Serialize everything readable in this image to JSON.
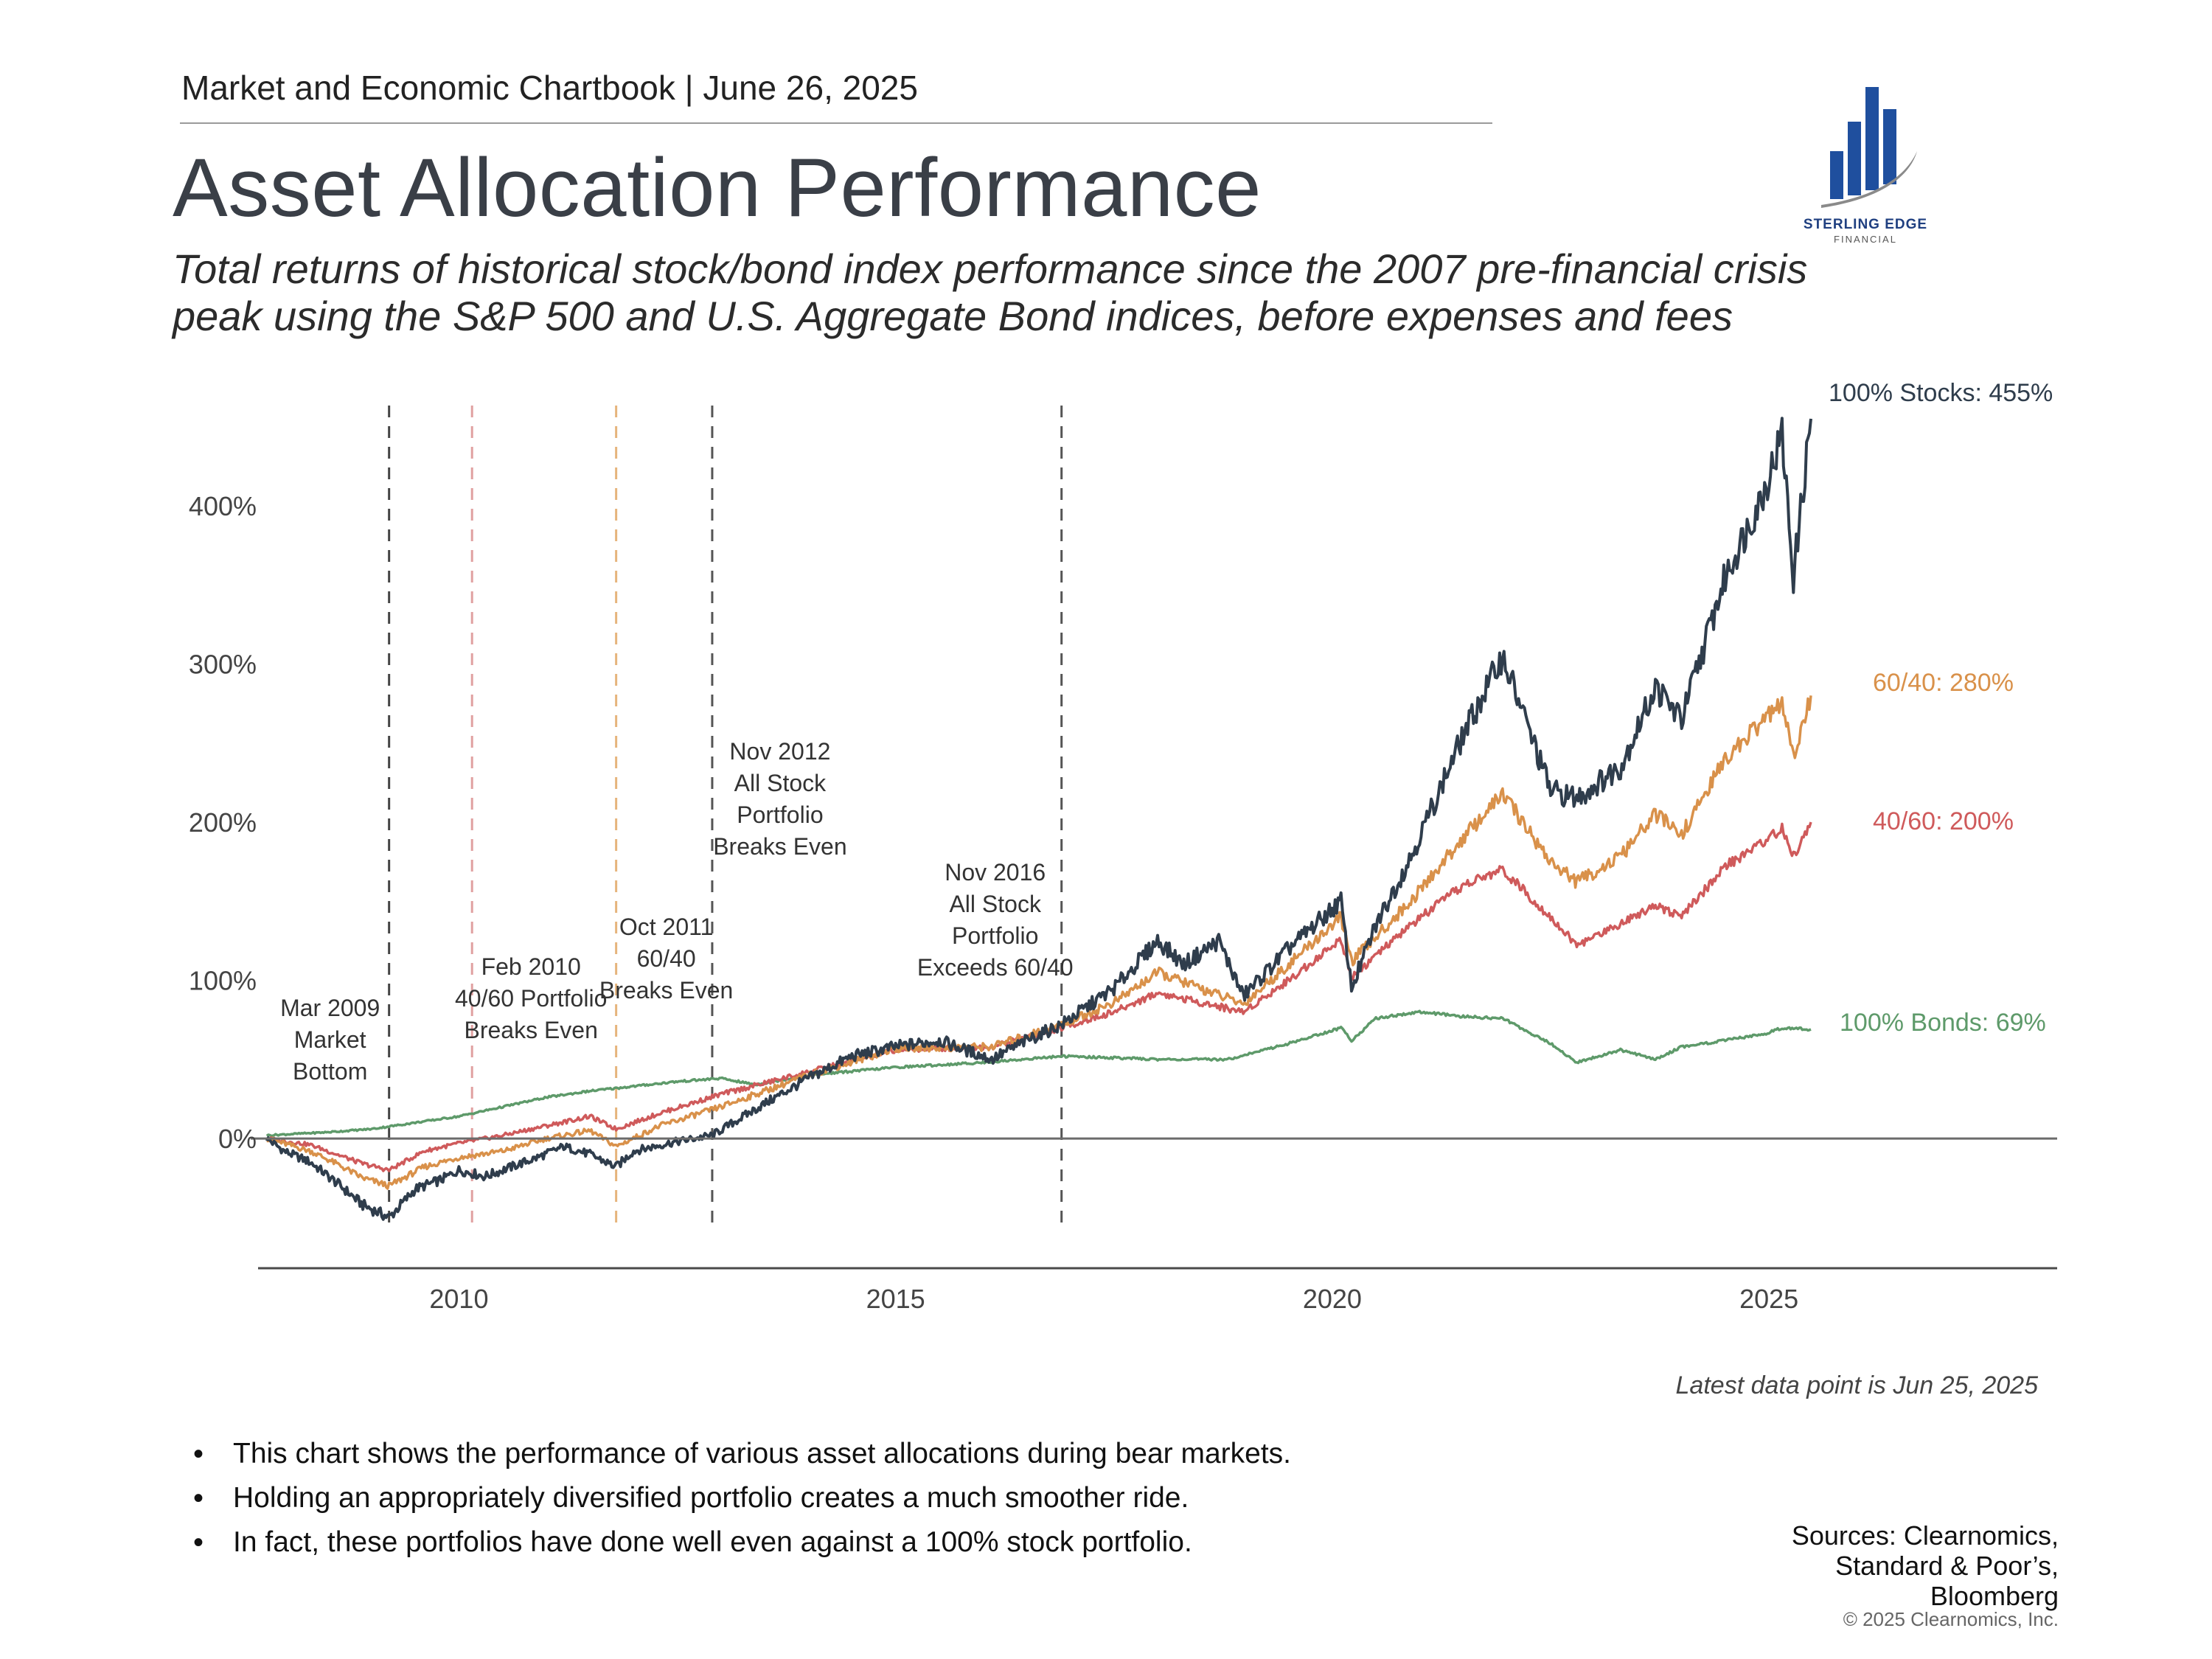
{
  "header": {
    "text": "Market and Economic Chartbook | June 26, 2025",
    "title": "Asset Allocation Performance",
    "subtitle_line1": "Total returns of historical stock/bond index performance since the 2007 pre-financial crisis",
    "subtitle_line2": "peak using the S&P 500 and U.S. Aggregate Bond indices, before expenses and fees"
  },
  "logo": {
    "name": "STERLING EDGE",
    "sub": "FINANCIAL"
  },
  "colors": {
    "stocks": "#2f3d4c",
    "sixty_forty": "#d9914a",
    "forty_sixty": "#cf5a5b",
    "bonds": "#5e9a6a",
    "axis": "#555555"
  },
  "chart_data": {
    "type": "line",
    "title": "Asset Allocation Performance",
    "xlabel": "",
    "ylabel": "",
    "xlim": [
      2007.7,
      2028.3
    ],
    "ylim": [
      -82,
      468
    ],
    "x_ticks": [
      2010,
      2015,
      2020,
      2025
    ],
    "x_tick_labels": [
      "2010",
      "2015",
      "2020",
      "2025"
    ],
    "y_ticks": [
      0,
      100,
      200,
      300,
      400
    ],
    "y_tick_labels": [
      "0%",
      "100%",
      "200%",
      "300%",
      "400%"
    ],
    "series": [
      {
        "name": "100% Stocks",
        "color": "#2f3d4c",
        "end_label": "100% Stocks: 455%",
        "x": [
          2007.8,
          2008.0,
          2008.3,
          2008.6,
          2008.9,
          2009.2,
          2009.5,
          2009.8,
          2010.0,
          2010.3,
          2010.6,
          2010.9,
          2011.2,
          2011.5,
          2011.8,
          2012.0,
          2012.4,
          2012.9,
          2013.5,
          2014.0,
          2014.5,
          2015.0,
          2015.5,
          2016.1,
          2016.5,
          2016.9,
          2017.5,
          2018.0,
          2018.3,
          2018.7,
          2018.98,
          2019.5,
          2020.1,
          2020.22,
          2020.5,
          2020.9,
          2021.5,
          2021.95,
          2022.5,
          2022.8,
          2023.3,
          2023.7,
          2024.0,
          2024.5,
          2024.95,
          2025.15,
          2025.28,
          2025.48
        ],
        "y": [
          0,
          -8,
          -15,
          -28,
          -42,
          -50,
          -32,
          -26,
          -20,
          -24,
          -18,
          -12,
          -5,
          -10,
          -18,
          -8,
          -3,
          2,
          22,
          38,
          52,
          58,
          62,
          50,
          62,
          72,
          95,
          125,
          110,
          125,
          90,
          120,
          150,
          95,
          135,
          178,
          255,
          305,
          220,
          215,
          235,
          285,
          265,
          355,
          410,
          445,
          355,
          455
        ]
      },
      {
        "name": "60/40",
        "color": "#d9914a",
        "end_label": "60/40: 280%",
        "x": [
          2007.8,
          2008.3,
          2008.6,
          2008.9,
          2009.2,
          2009.6,
          2010.0,
          2010.5,
          2011.0,
          2011.5,
          2011.8,
          2012.3,
          2013.0,
          2014.0,
          2015.0,
          2016.1,
          2016.9,
          2017.5,
          2018.0,
          2018.98,
          2019.5,
          2020.1,
          2020.22,
          2020.9,
          2021.5,
          2021.95,
          2022.5,
          2022.8,
          2023.3,
          2023.7,
          2024.0,
          2024.5,
          2024.95,
          2025.15,
          2025.28,
          2025.48
        ],
        "y": [
          0,
          -8,
          -16,
          -25,
          -30,
          -18,
          -12,
          -8,
          0,
          5,
          -5,
          8,
          20,
          40,
          57,
          58,
          72,
          86,
          105,
          85,
          110,
          140,
          112,
          150,
          190,
          218,
          175,
          162,
          178,
          205,
          192,
          240,
          265,
          275,
          240,
          280
        ]
      },
      {
        "name": "40/60",
        "color": "#cf5a5b",
        "end_label": "40/60: 200%",
        "x": [
          2007.8,
          2008.3,
          2008.6,
          2008.9,
          2009.2,
          2009.6,
          2010.0,
          2010.5,
          2011.0,
          2011.5,
          2011.8,
          2012.3,
          2013.0,
          2014.0,
          2015.0,
          2016.1,
          2016.9,
          2017.5,
          2018.0,
          2018.98,
          2019.5,
          2020.1,
          2020.22,
          2020.9,
          2021.5,
          2021.95,
          2022.5,
          2022.8,
          2023.3,
          2023.7,
          2024.0,
          2024.5,
          2024.95,
          2025.15,
          2025.28,
          2025.48
        ],
        "y": [
          0,
          -4,
          -10,
          -16,
          -20,
          -8,
          -3,
          2,
          8,
          14,
          6,
          16,
          28,
          42,
          56,
          58,
          70,
          80,
          92,
          80,
          100,
          126,
          102,
          135,
          160,
          170,
          140,
          122,
          136,
          148,
          140,
          172,
          188,
          196,
          178,
          200
        ]
      },
      {
        "name": "100% Bonds",
        "color": "#5e9a6a",
        "end_label": "100% Bonds: 69%",
        "x": [
          2007.8,
          2008.5,
          2009.0,
          2009.5,
          2010.0,
          2010.5,
          2011.0,
          2011.5,
          2012.0,
          2012.5,
          2013.0,
          2013.4,
          2014.0,
          2015.0,
          2016.0,
          2016.9,
          2017.5,
          2018.0,
          2018.8,
          2019.5,
          2020.1,
          2020.22,
          2020.5,
          2021.0,
          2021.5,
          2021.95,
          2022.5,
          2022.8,
          2023.3,
          2023.7,
          2024.0,
          2024.5,
          2024.95,
          2025.15,
          2025.48
        ],
        "y": [
          2,
          4,
          6,
          10,
          14,
          20,
          26,
          30,
          33,
          36,
          38,
          34,
          40,
          45,
          48,
          52,
          51,
          50,
          50,
          60,
          70,
          62,
          76,
          80,
          77,
          76,
          60,
          48,
          56,
          50,
          58,
          62,
          66,
          70,
          69
        ]
      }
    ],
    "events": [
      {
        "x": 2009.2,
        "color": "#444444",
        "label": [
          "Mar 2009",
          "Market",
          "Bottom"
        ]
      },
      {
        "x": 2010.15,
        "color": "#e0a0a0",
        "label": [
          "Feb 2010",
          "40/60 Portfolio",
          "Breaks Even"
        ]
      },
      {
        "x": 2011.8,
        "color": "#e6b47c",
        "label": [
          "Oct 2011",
          "60/40",
          "Breaks Even"
        ]
      },
      {
        "x": 2012.9,
        "color": "#555555",
        "label": [
          "Nov 2012",
          "All Stock",
          "Portfolio",
          "Breaks Even"
        ]
      },
      {
        "x": 2016.9,
        "color": "#555555",
        "label": [
          "Nov 2016",
          "All Stock",
          "Portfolio",
          "Exceeds 60/40"
        ]
      }
    ]
  },
  "note": "Latest data point is Jun 25, 2025",
  "bullets": [
    "This chart shows the performance of various asset allocations during bear markets.",
    "Holding an appropriately diversified portfolio creates a much smoother ride.",
    "In fact, these portfolios have done well even against a 100% stock portfolio."
  ],
  "sources": [
    "Sources: Clearnomics,",
    "Standard & Poor’s,",
    "Bloomberg"
  ],
  "copyright": "© 2025 Clearnomics, Inc."
}
